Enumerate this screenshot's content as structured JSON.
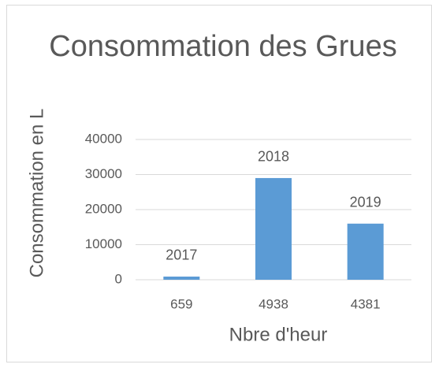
{
  "chart_data": {
    "type": "bar",
    "title": "Consommation des Grues",
    "x_label": "Nbre d'heur",
    "y_label": "Consommation en L",
    "categories": [
      "659",
      "4938",
      "4381"
    ],
    "values": [
      900,
      29000,
      16000
    ],
    "data_labels": [
      "2017",
      "2018",
      "2019"
    ],
    "color": "#5b9bd5",
    "ylim": [
      0,
      40000
    ],
    "yticks": [
      0,
      10000,
      20000,
      30000,
      40000
    ],
    "grid": true
  }
}
